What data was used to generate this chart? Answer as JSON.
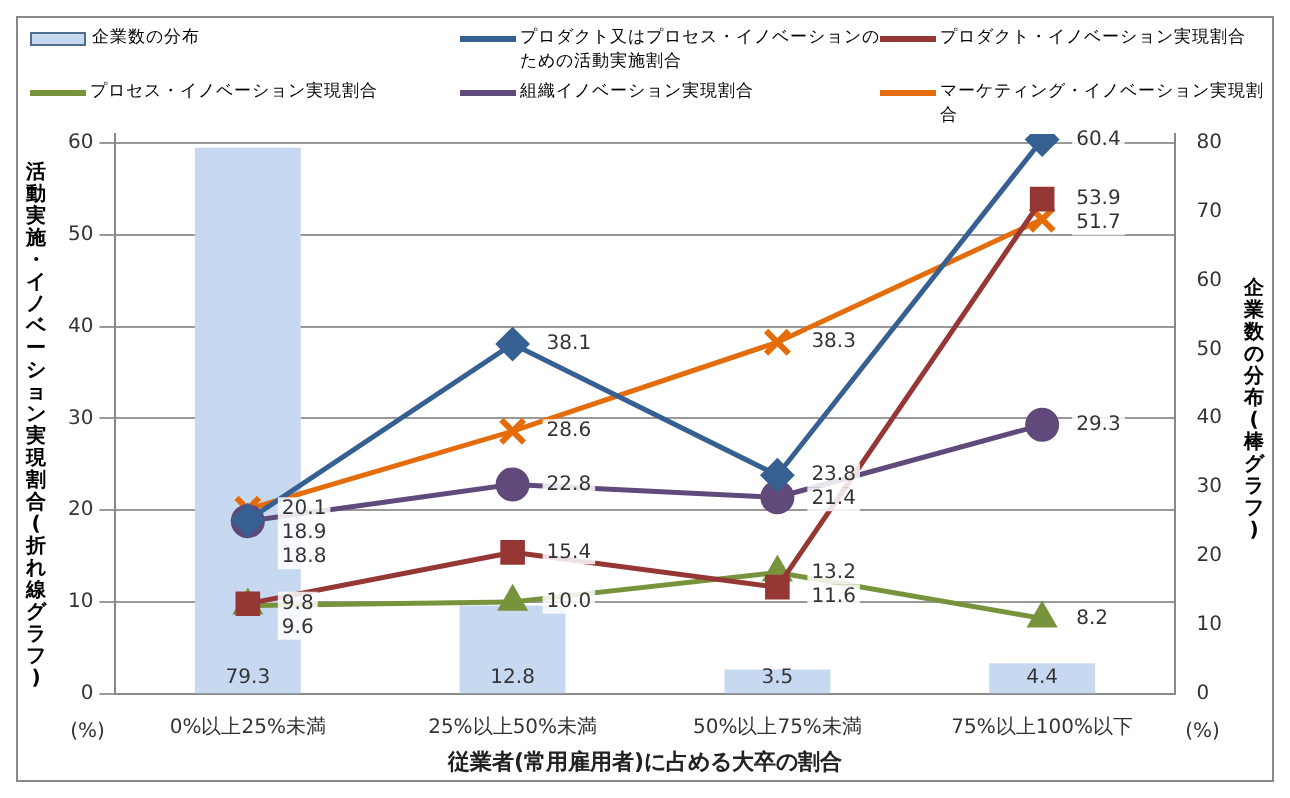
{
  "chart_data": {
    "type": "line",
    "xlabel": "従業者(常用雇用者)に占める大卒の割合",
    "ylabel": "活動実施・イノベーション実現割合(折れ線グラフ)",
    "y2label": "企業数の分布(棒グラフ)",
    "categories": [
      "0%以上25%未満",
      "25%以上50%未満",
      "50%以上75%未満",
      "75%以上100%以下"
    ],
    "series": [
      {
        "name": "企業数の分布",
        "type": "bar",
        "axis": "y2",
        "color": "#c6d9f1",
        "values": [
          79.3,
          12.8,
          3.5,
          4.4
        ]
      },
      {
        "name": "プロダクト又はプロセス・イノベーションのための活動実施割合",
        "color": "#376092",
        "marker": "diamond",
        "values": [
          18.9,
          38.1,
          23.8,
          60.4
        ]
      },
      {
        "name": "プロダクト・イノベーション実現割合",
        "color": "#953735",
        "marker": "square",
        "values": [
          9.8,
          15.4,
          11.6,
          53.9
        ]
      },
      {
        "name": "プロセス・イノベーション実現割合",
        "color": "#77933c",
        "marker": "triangle",
        "values": [
          9.6,
          10.0,
          13.2,
          8.2
        ],
        "value_labels": [
          "9.6",
          "10.0",
          "13.2",
          "8.2"
        ]
      },
      {
        "name": "組織イノベーション実現割合",
        "color": "#604a7b",
        "marker": "circle",
        "values": [
          18.8,
          22.8,
          21.4,
          29.3
        ]
      },
      {
        "name": "マーケティング・イノベーション実現割合",
        "color": "#e46c0a",
        "marker": "cross",
        "values": [
          20.1,
          28.6,
          38.3,
          51.7
        ]
      }
    ],
    "ylim": [
      0,
      61
    ],
    "yticks": [
      0,
      10,
      20,
      30,
      40,
      50,
      60
    ],
    "y2lim": [
      0,
      81.3
    ],
    "y2ticks": [
      0,
      10,
      20,
      30,
      40,
      50,
      60,
      70,
      80
    ],
    "grid": "y",
    "legend": "top",
    "data_labels": true,
    "annotations": [
      "(%)",
      "(%)"
    ]
  }
}
